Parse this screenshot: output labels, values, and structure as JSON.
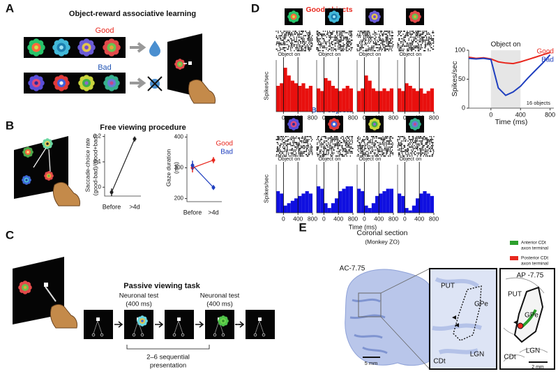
{
  "figure": {
    "A": {
      "letter": "A",
      "title": "Object-reward associative learning",
      "good": "Good",
      "bad": "Bad"
    },
    "B": {
      "letter": "B",
      "title": "Free viewing procedure"
    },
    "C": {
      "letter": "C",
      "title": "Passive viewing task",
      "test_1": [
        "Neuronal test",
        "(400 ms)"
      ],
      "test_2": [
        "Neuronal test",
        "(400 ms)"
      ],
      "sequence": [
        "2–6 sequential",
        "presentation"
      ]
    },
    "D": {
      "letter": "D",
      "good": "Good objects",
      "bad": "Bad objects",
      "xlabel": "Time (ms)"
    },
    "E": {
      "letter": "E",
      "title": "Coronal section",
      "subtitle": "(Monkey ZO)",
      "legend": [
        {
          "label": [
            "Anterior  CDt",
            "axon terminal"
          ],
          "color": "#2ca02c"
        },
        {
          "label": [
            "Posterior CDt",
            "axon terminal"
          ],
          "color": "#e8281e"
        }
      ],
      "left_label": "AC-7.75",
      "right_label": "AP -7.75",
      "regions_mid": [
        "PUT",
        "GPe",
        "LGN",
        "CDt"
      ],
      "regions_right": [
        "PUT",
        "GPe",
        "CDt",
        "LGN"
      ],
      "scale_left": "5 mm",
      "scale_right": "2 mm"
    }
  },
  "chart_data": [
    {
      "type": "line",
      "ylabel": [
        "Saccade-choice rate",
        "(good-bad)/(good+bad)"
      ],
      "categories": [
        "Before",
        ">4d"
      ],
      "series": [
        {
          "color": "#222222",
          "values": [
            -0.02,
            0.19
          ],
          "errors": [
            0.015,
            0.01
          ]
        }
      ],
      "ylim": [
        -0.035,
        0.21
      ],
      "yticks": [
        0,
        0.1,
        0.2
      ]
    },
    {
      "type": "line",
      "ylabel": [
        "Gaze duration",
        "(ms)"
      ],
      "categories": [
        "Before",
        ">4d"
      ],
      "series": [
        {
          "name": "Good",
          "color": "#e8281e",
          "values": [
            300,
            325
          ],
          "errors": [
            15,
            10
          ]
        },
        {
          "name": "Bad",
          "color": "#1f3fbf",
          "values": [
            308,
            236
          ],
          "errors": [
            15,
            8
          ]
        }
      ],
      "ylim": [
        190,
        410
      ],
      "yticks": [
        200,
        300,
        400
      ],
      "legend": "upper right"
    },
    {
      "type": "line",
      "annotation": "Object on",
      "shade": [
        0,
        400
      ],
      "x": [
        -300,
        -200,
        -100,
        0,
        100,
        200,
        300,
        400,
        500,
        600,
        700,
        800
      ],
      "series": [
        {
          "name": "Good",
          "color": "#e8281e",
          "values": [
            88,
            86,
            87,
            85,
            80,
            78,
            77,
            80,
            84,
            88,
            92,
            96
          ]
        },
        {
          "name": "Bad",
          "color": "#1f3fbf",
          "values": [
            86,
            85,
            86,
            84,
            35,
            22,
            28,
            38,
            52,
            65,
            78,
            92
          ]
        }
      ],
      "xlim": [
        -300,
        850
      ],
      "xticks": [
        0,
        400,
        800
      ],
      "ylim": [
        0,
        100
      ],
      "yticks": [
        0,
        50,
        100
      ],
      "xlabel": "Time (ms)",
      "ylabel": "Spikes/sec",
      "note": "16 objects",
      "legend": "upper right"
    },
    {
      "type": "histogram",
      "color": "#e8100e",
      "ylabel": "Spikes/sec",
      "annotation": "Object on",
      "bins": [
        -200,
        -100,
        0,
        100,
        200,
        300,
        400,
        500,
        600,
        700,
        800
      ],
      "values": [
        100,
        110,
        170,
        140,
        120,
        110,
        100,
        110,
        90,
        100
      ],
      "xlim": [
        -200,
        800
      ],
      "xticks": [
        0,
        400,
        800
      ],
      "ylim": [
        0,
        200
      ]
    },
    {
      "type": "histogram",
      "color": "#e8100e",
      "annotation": "Object on",
      "bins": [
        -200,
        -100,
        0,
        100,
        200,
        300,
        400,
        500,
        600,
        700,
        800
      ],
      "values": [
        90,
        80,
        130,
        120,
        100,
        90,
        80,
        90,
        100,
        90
      ],
      "xlim": [
        -200,
        800
      ],
      "xticks": [
        0,
        400,
        800
      ],
      "ylim": [
        0,
        200
      ]
    },
    {
      "type": "histogram",
      "color": "#e8100e",
      "annotation": "Object on",
      "bins": [
        -200,
        -100,
        0,
        100,
        200,
        300,
        400,
        500,
        600,
        700,
        800
      ],
      "values": [
        80,
        90,
        140,
        120,
        90,
        80,
        80,
        90,
        80,
        90
      ],
      "xlim": [
        -200,
        800
      ],
      "xticks": [
        0,
        400,
        800
      ],
      "ylim": [
        0,
        200
      ]
    },
    {
      "type": "histogram",
      "color": "#e8100e",
      "annotation": "Object on",
      "bins": [
        -200,
        -100,
        0,
        100,
        200,
        300,
        400,
        500,
        600,
        700,
        800
      ],
      "values": [
        90,
        80,
        110,
        100,
        90,
        80,
        90,
        70,
        80,
        90
      ],
      "xlim": [
        -200,
        800
      ],
      "xticks": [
        0,
        400,
        800
      ],
      "ylim": [
        0,
        200
      ]
    },
    {
      "type": "histogram",
      "color": "#1010e0",
      "ylabel": "Spikes/sec",
      "annotation": "Object on",
      "bins": [
        -200,
        -100,
        0,
        100,
        200,
        300,
        400,
        500,
        600,
        700,
        800
      ],
      "values": [
        90,
        80,
        30,
        40,
        50,
        60,
        70,
        80,
        90,
        80
      ],
      "xlim": [
        -200,
        800
      ],
      "xticks": [
        0,
        400,
        800
      ],
      "ylim": [
        0,
        200
      ]
    },
    {
      "type": "histogram",
      "color": "#1010e0",
      "annotation": "Object on",
      "bins": [
        -200,
        -100,
        0,
        100,
        200,
        300,
        400,
        500,
        600,
        700,
        800
      ],
      "values": [
        110,
        100,
        40,
        20,
        40,
        60,
        90,
        100,
        110,
        110
      ],
      "xlim": [
        -200,
        800
      ],
      "xticks": [
        0,
        400,
        800
      ],
      "ylim": [
        0,
        200
      ]
    },
    {
      "type": "histogram",
      "color": "#1010e0",
      "annotation": "Object on",
      "bins": [
        -200,
        -100,
        0,
        100,
        200,
        300,
        400,
        500,
        600,
        700,
        800
      ],
      "values": [
        100,
        90,
        30,
        20,
        40,
        70,
        80,
        90,
        100,
        100
      ],
      "xlim": [
        -200,
        800
      ],
      "xticks": [
        0,
        400,
        800
      ],
      "ylim": [
        0,
        200
      ]
    },
    {
      "type": "histogram",
      "color": "#1010e0",
      "annotation": "Object on",
      "bins": [
        -200,
        -100,
        0,
        100,
        200,
        300,
        400,
        500,
        600,
        700,
        800
      ],
      "values": [
        80,
        70,
        20,
        10,
        30,
        60,
        80,
        90,
        80,
        70
      ],
      "xlim": [
        -200,
        800
      ],
      "xticks": [
        0,
        400,
        800
      ],
      "ylim": [
        0,
        200
      ]
    }
  ]
}
